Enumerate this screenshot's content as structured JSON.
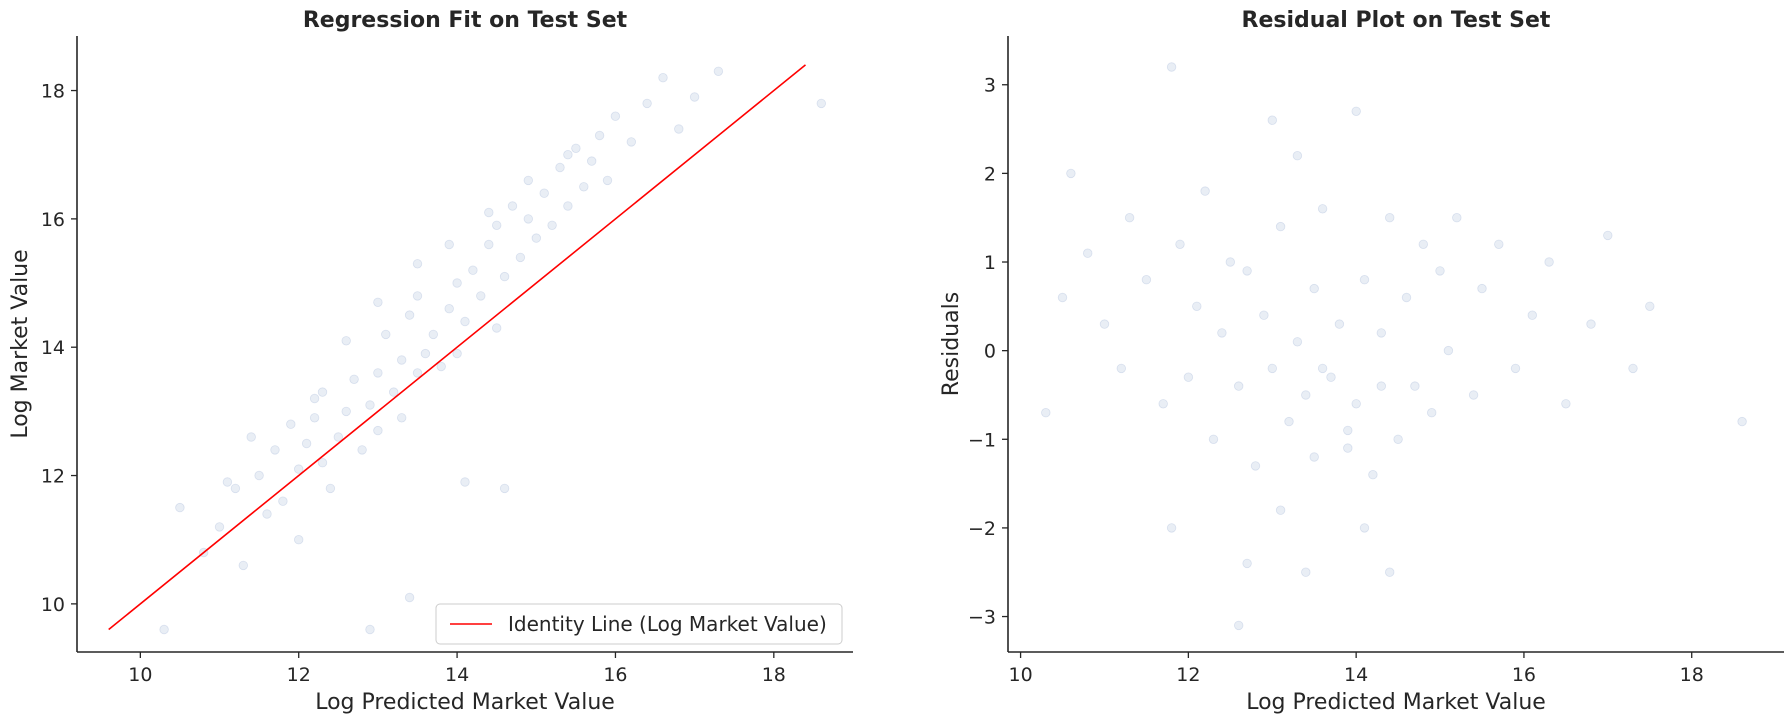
{
  "chart_data": [
    {
      "type": "scatter",
      "title": "Regression Fit on Test Set",
      "xlabel": "Log Predicted Market Value",
      "ylabel": "Log Market Value",
      "xlim": [
        9.2,
        19.0
      ],
      "ylim": [
        9.25,
        18.85
      ],
      "xticks": [
        10,
        12,
        14,
        16,
        18
      ],
      "yticks": [
        10,
        12,
        14,
        16,
        18
      ],
      "grid": false,
      "legend_position": "lower-right",
      "series": [
        {
          "name": "Identity Line (Log Market Value)",
          "kind": "line",
          "color": "#ff0000",
          "x": [
            9.6,
            18.4
          ],
          "y": [
            9.6,
            18.4
          ]
        },
        {
          "kind": "scatter",
          "color": "#4c72b0",
          "alpha": 0.12,
          "x": [
            10.3,
            10.5,
            10.8,
            11.0,
            11.2,
            11.3,
            11.5,
            11.6,
            11.7,
            11.8,
            11.9,
            12.0,
            12.0,
            12.1,
            12.2,
            12.3,
            12.3,
            12.4,
            12.5,
            12.6,
            12.7,
            12.8,
            12.9,
            13.0,
            13.0,
            13.1,
            13.2,
            13.3,
            13.3,
            13.4,
            13.5,
            13.5,
            13.6,
            13.7,
            13.8,
            13.9,
            14.0,
            14.0,
            14.1,
            14.2,
            14.3,
            14.4,
            14.5,
            14.5,
            14.6,
            14.7,
            14.8,
            14.9,
            15.0,
            15.1,
            15.2,
            15.3,
            15.4,
            15.5,
            15.6,
            15.7,
            15.8,
            15.9,
            16.0,
            16.2,
            16.4,
            16.6,
            16.8,
            17.0,
            17.3,
            18.6,
            11.1,
            11.4,
            12.2,
            12.6,
            13.0,
            13.5,
            13.9,
            14.4,
            14.9,
            15.4,
            12.9,
            13.4,
            14.1,
            14.6
          ],
          "y": [
            9.6,
            11.5,
            10.8,
            11.2,
            11.8,
            10.6,
            12.0,
            11.4,
            12.4,
            11.6,
            12.8,
            12.1,
            11.0,
            12.5,
            12.9,
            12.2,
            13.3,
            11.8,
            12.6,
            13.0,
            13.5,
            12.4,
            13.1,
            13.6,
            12.7,
            14.2,
            13.3,
            13.8,
            12.9,
            14.5,
            13.6,
            14.8,
            13.9,
            14.2,
            13.7,
            14.6,
            15.0,
            13.9,
            14.4,
            15.2,
            14.8,
            15.6,
            14.3,
            15.9,
            15.1,
            16.2,
            15.4,
            16.0,
            15.7,
            16.4,
            15.9,
            16.8,
            16.2,
            17.1,
            16.5,
            16.9,
            17.3,
            16.6,
            17.6,
            17.2,
            17.8,
            18.2,
            17.4,
            17.9,
            18.3,
            17.8,
            11.9,
            12.6,
            13.2,
            14.1,
            14.7,
            15.3,
            15.6,
            16.1,
            16.6,
            17.0,
            9.6,
            10.1,
            11.9,
            11.8
          ]
        }
      ]
    },
    {
      "type": "scatter",
      "title": "Residual Plot on Test Set",
      "xlabel": "Log Predicted Market Value",
      "ylabel": "Residuals",
      "xlim": [
        9.85,
        19.1
      ],
      "ylim": [
        -3.4,
        3.55
      ],
      "xticks": [
        10,
        12,
        14,
        16,
        18
      ],
      "yticks": [
        -3,
        -2,
        -1,
        0,
        1,
        2,
        3
      ],
      "grid": false,
      "series": [
        {
          "kind": "scatter",
          "color": "#4c72b0",
          "alpha": 0.12,
          "x": [
            10.3,
            10.5,
            10.6,
            10.8,
            11.0,
            11.2,
            11.3,
            11.5,
            11.7,
            11.8,
            11.9,
            12.0,
            12.1,
            12.2,
            12.3,
            12.4,
            12.5,
            12.6,
            12.7,
            12.8,
            12.9,
            13.0,
            13.0,
            13.1,
            13.2,
            13.3,
            13.3,
            13.4,
            13.5,
            13.5,
            13.6,
            13.7,
            13.8,
            13.9,
            14.0,
            14.0,
            14.1,
            14.2,
            14.3,
            14.4,
            14.5,
            14.6,
            14.7,
            14.8,
            14.9,
            15.0,
            15.1,
            15.2,
            15.4,
            15.5,
            15.7,
            15.9,
            16.1,
            16.3,
            16.5,
            16.8,
            17.0,
            17.3,
            17.5,
            18.6,
            11.8,
            12.7,
            12.6,
            13.4,
            14.4,
            14.1,
            13.1,
            13.9,
            13.6,
            14.3
          ],
          "y": [
            -0.7,
            0.6,
            2.0,
            1.1,
            0.3,
            -0.2,
            1.5,
            0.8,
            -0.6,
            3.2,
            1.2,
            -0.3,
            0.5,
            1.8,
            -1.0,
            0.2,
            1.0,
            -0.4,
            0.9,
            -1.3,
            0.4,
            2.6,
            -0.2,
            1.4,
            -0.8,
            0.1,
            2.2,
            -0.5,
            0.7,
            -1.2,
            1.6,
            -0.3,
            0.3,
            -0.9,
            2.7,
            -0.6,
            0.8,
            -1.4,
            0.2,
            1.5,
            -1.0,
            0.6,
            -0.4,
            1.2,
            -0.7,
            0.9,
            0.0,
            1.5,
            -0.5,
            0.7,
            1.2,
            -0.2,
            0.4,
            1.0,
            -0.6,
            0.3,
            1.3,
            -0.2,
            0.5,
            -0.8,
            -2.0,
            -2.4,
            -3.1,
            -2.5,
            -2.5,
            -2.0,
            -1.8,
            -1.1,
            -0.2,
            -0.4
          ]
        }
      ]
    }
  ]
}
